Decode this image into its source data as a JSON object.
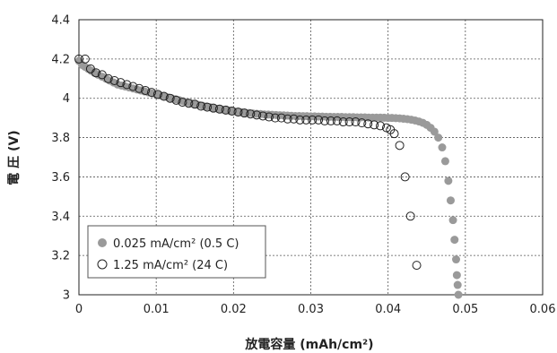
{
  "chart_data": {
    "type": "scatter",
    "xlabel": "放電容量 (mAh/cm²)",
    "ylabel": "電 圧 (V)",
    "xlim": [
      0,
      0.06
    ],
    "ylim": [
      3,
      4.4
    ],
    "x_ticks": [
      "0",
      "0.01",
      "0.02",
      "0.03",
      "0.04",
      "0.05",
      "0.06"
    ],
    "y_ticks": [
      "3",
      "3.2",
      "3.4",
      "3.6",
      "3.8",
      "4",
      "4.2",
      "4.4"
    ],
    "grid": true,
    "legend_position": "bottom-left",
    "series": [
      {
        "name": "0.025 mA/cm² (0.5 C)",
        "marker": "filled-circle",
        "color": "#9a9a9a",
        "x": [
          0.0,
          0.0004,
          0.0008,
          0.0012,
          0.0016,
          0.002,
          0.0025,
          0.003,
          0.0035,
          0.004,
          0.0045,
          0.005,
          0.0055,
          0.006,
          0.0065,
          0.007,
          0.0075,
          0.008,
          0.0085,
          0.009,
          0.0095,
          0.01,
          0.0105,
          0.011,
          0.0115,
          0.012,
          0.0125,
          0.013,
          0.0135,
          0.014,
          0.0145,
          0.015,
          0.0155,
          0.016,
          0.0165,
          0.017,
          0.0175,
          0.018,
          0.0185,
          0.019,
          0.0195,
          0.02,
          0.0205,
          0.021,
          0.0215,
          0.022,
          0.0225,
          0.023,
          0.0235,
          0.024,
          0.0245,
          0.025,
          0.0255,
          0.026,
          0.0265,
          0.027,
          0.0275,
          0.028,
          0.0285,
          0.029,
          0.0295,
          0.03,
          0.0305,
          0.031,
          0.0315,
          0.032,
          0.0325,
          0.033,
          0.0335,
          0.034,
          0.0345,
          0.035,
          0.0355,
          0.036,
          0.0365,
          0.037,
          0.0375,
          0.038,
          0.0385,
          0.039,
          0.0395,
          0.04,
          0.0405,
          0.041,
          0.0415,
          0.042,
          0.0425,
          0.043,
          0.0435,
          0.044,
          0.0445,
          0.045,
          0.0455,
          0.046,
          0.0465,
          0.047,
          0.0474,
          0.0478,
          0.0481,
          0.0484,
          0.0486,
          0.0488,
          0.0489,
          0.049,
          0.0491
        ],
        "y": [
          4.19,
          4.17,
          4.16,
          4.15,
          4.14,
          4.13,
          4.12,
          4.11,
          4.1,
          4.09,
          4.08,
          4.07,
          4.065,
          4.06,
          4.055,
          4.05,
          4.045,
          4.04,
          4.035,
          4.03,
          4.025,
          4.02,
          4.015,
          4.01,
          4.005,
          4.0,
          3.995,
          3.99,
          3.985,
          3.98,
          3.975,
          3.97,
          3.966,
          3.962,
          3.958,
          3.954,
          3.95,
          3.946,
          3.943,
          3.94,
          3.937,
          3.934,
          3.931,
          3.929,
          3.927,
          3.925,
          3.923,
          3.921,
          3.92,
          3.918,
          3.917,
          3.916,
          3.915,
          3.914,
          3.913,
          3.912,
          3.911,
          3.91,
          3.91,
          3.909,
          3.909,
          3.908,
          3.908,
          3.907,
          3.907,
          3.906,
          3.906,
          3.905,
          3.905,
          3.905,
          3.904,
          3.904,
          3.904,
          3.903,
          3.903,
          3.903,
          3.902,
          3.902,
          3.902,
          3.902,
          3.901,
          3.9,
          3.9,
          3.899,
          3.898,
          3.896,
          3.894,
          3.891,
          3.887,
          3.882,
          3.875,
          3.865,
          3.85,
          3.83,
          3.8,
          3.75,
          3.68,
          3.58,
          3.48,
          3.38,
          3.28,
          3.18,
          3.1,
          3.05,
          3.0
        ]
      },
      {
        "name": "1.25 mA/cm² (24 C)",
        "marker": "open-circle",
        "color": "#222222",
        "x": [
          0.0,
          0.0008,
          0.0015,
          0.0022,
          0.003,
          0.0038,
          0.0046,
          0.0054,
          0.0062,
          0.007,
          0.0078,
          0.0086,
          0.0094,
          0.0102,
          0.011,
          0.0118,
          0.0126,
          0.0134,
          0.0142,
          0.015,
          0.0158,
          0.0166,
          0.0174,
          0.0182,
          0.019,
          0.0198,
          0.0206,
          0.0214,
          0.0222,
          0.023,
          0.0238,
          0.0246,
          0.0254,
          0.0262,
          0.027,
          0.0278,
          0.0286,
          0.0294,
          0.0302,
          0.031,
          0.0318,
          0.0326,
          0.0334,
          0.0342,
          0.035,
          0.0358,
          0.0366,
          0.0374,
          0.0382,
          0.039,
          0.0398,
          0.0403,
          0.0408,
          0.0415,
          0.0422,
          0.0429,
          0.0437
        ],
        "y": [
          4.2,
          4.2,
          4.15,
          4.13,
          4.12,
          4.1,
          4.09,
          4.08,
          4.07,
          4.06,
          4.05,
          4.04,
          4.03,
          4.02,
          4.01,
          4.0,
          3.99,
          3.98,
          3.975,
          3.97,
          3.96,
          3.955,
          3.95,
          3.945,
          3.94,
          3.935,
          3.93,
          3.925,
          3.92,
          3.915,
          3.91,
          3.905,
          3.9,
          3.9,
          3.895,
          3.895,
          3.89,
          3.89,
          3.89,
          3.89,
          3.885,
          3.885,
          3.885,
          3.88,
          3.88,
          3.88,
          3.875,
          3.87,
          3.865,
          3.86,
          3.85,
          3.84,
          3.82,
          3.76,
          3.6,
          3.4,
          3.15
        ]
      }
    ]
  }
}
